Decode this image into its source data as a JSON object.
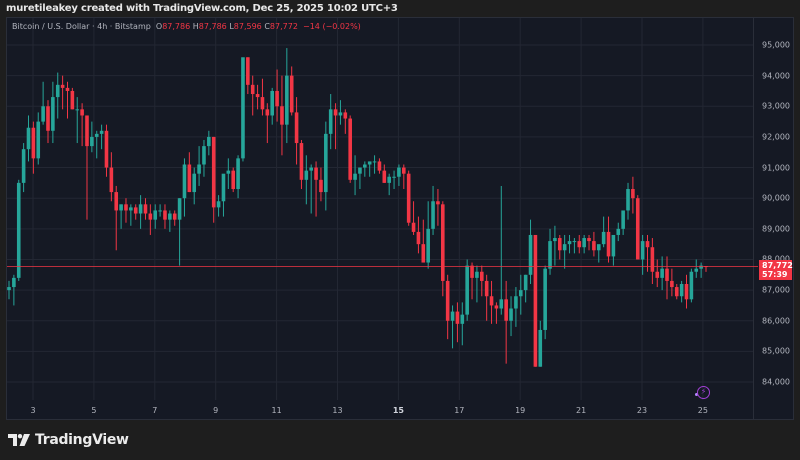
{
  "header": {
    "attribution": "muretileakey created with TradingView.com, Dec 25, 2025 10:02 UTC+3"
  },
  "legend": {
    "symbol": "Bitcoin / U.S. Dollar · 4h · Bitstamp",
    "o_label": "O",
    "o_value": "87,786",
    "h_label": "H",
    "h_value": "87,786",
    "l_label": "L",
    "l_value": "87,596",
    "c_label": "C",
    "c_value": "87,772",
    "change": "−14 (−0.02%)"
  },
  "price_badge": {
    "price": "87,772",
    "countdown": "57:39"
  },
  "footer": {
    "brand": "TradingView"
  },
  "colors": {
    "up": "#26a69a",
    "down": "#f23645",
    "background": "#151924",
    "grid": "#232733",
    "price_line": "#f23645",
    "text": "#b2b5be",
    "bolt": "#a23fd6"
  },
  "chart_data": {
    "type": "candlestick",
    "title": "Bitcoin / U.S. Dollar · 4h · Bitstamp",
    "xlabel": "",
    "ylabel": "",
    "ylim": [
      83500,
      95500
    ],
    "y_ticks": [
      "95,000",
      "94,000",
      "93,000",
      "92,000",
      "91,000",
      "90,000",
      "89,000",
      "88,000",
      "87,000",
      "86,000",
      "85,000",
      "84,000"
    ],
    "x_ticks": [
      "3",
      "5",
      "7",
      "9",
      "11",
      "13",
      "15",
      "17",
      "19",
      "21",
      "23",
      "25"
    ],
    "x_ticks_bold": [
      "15"
    ],
    "last_price": 87772,
    "grid": true,
    "candles": [
      [
        87000,
        87300,
        86700,
        87100
      ],
      [
        87100,
        87500,
        86500,
        87400
      ],
      [
        87400,
        90600,
        87300,
        90500
      ],
      [
        90500,
        91800,
        90200,
        91600
      ],
      [
        91600,
        92700,
        91200,
        92300
      ],
      [
        92300,
        92500,
        90800,
        91300
      ],
      [
        91300,
        92800,
        91100,
        92500
      ],
      [
        92500,
        93800,
        92400,
        93000
      ],
      [
        93000,
        93200,
        91800,
        92200
      ],
      [
        92200,
        93800,
        91800,
        93300
      ],
      [
        93300,
        94100,
        92600,
        93700
      ],
      [
        93700,
        94000,
        92900,
        93600
      ],
      [
        93600,
        93800,
        92600,
        93500
      ],
      [
        93500,
        93600,
        92900,
        92900
      ],
      [
        92900,
        93300,
        91800,
        92900
      ],
      [
        92900,
        93100,
        91700,
        92700
      ],
      [
        92700,
        92700,
        89300,
        91700
      ],
      [
        91700,
        92500,
        91500,
        92000
      ],
      [
        92000,
        92200,
        91300,
        92100
      ],
      [
        92100,
        92400,
        91600,
        92200
      ],
      [
        92200,
        92400,
        90700,
        91000
      ],
      [
        91000,
        91500,
        89900,
        90200
      ],
      [
        90200,
        90400,
        88300,
        89600
      ],
      [
        89600,
        89800,
        89000,
        89800
      ],
      [
        89800,
        90000,
        89200,
        89600
      ],
      [
        89600,
        89800,
        89100,
        89700
      ],
      [
        89700,
        89800,
        89300,
        89500
      ],
      [
        89500,
        90100,
        89000,
        89800
      ],
      [
        89800,
        90000,
        89300,
        89500
      ],
      [
        89500,
        89800,
        88800,
        89300
      ],
      [
        89300,
        89800,
        89000,
        89600
      ],
      [
        89600,
        89800,
        89400,
        89600
      ],
      [
        89600,
        89800,
        89000,
        89300
      ],
      [
        89300,
        89600,
        88900,
        89500
      ],
      [
        89500,
        89600,
        89100,
        89300
      ],
      [
        89300,
        90000,
        87800,
        90000
      ],
      [
        90000,
        91300,
        89400,
        91100
      ],
      [
        91100,
        91500,
        90200,
        90200
      ],
      [
        90200,
        91000,
        89800,
        90800
      ],
      [
        90800,
        91700,
        90400,
        91100
      ],
      [
        91100,
        91900,
        90700,
        91700
      ],
      [
        91700,
        92200,
        91400,
        92000
      ],
      [
        92000,
        92000,
        89200,
        89700
      ],
      [
        89700,
        90100,
        89400,
        89900
      ],
      [
        89900,
        90300,
        89400,
        90800
      ],
      [
        90800,
        91300,
        90300,
        90900
      ],
      [
        90900,
        91000,
        90200,
        90300
      ],
      [
        90300,
        91400,
        90000,
        91300
      ],
      [
        91300,
        93500,
        91200,
        94600
      ],
      [
        94600,
        94600,
        93400,
        93700
      ],
      [
        93700,
        94000,
        92700,
        93400
      ],
      [
        93400,
        93700,
        92900,
        93300
      ],
      [
        93300,
        93900,
        92700,
        92900
      ],
      [
        92900,
        93100,
        91800,
        92700
      ],
      [
        92700,
        93600,
        92400,
        93500
      ],
      [
        93500,
        94200,
        92500,
        93000
      ],
      [
        93000,
        94000,
        91400,
        92400
      ],
      [
        92400,
        94900,
        91800,
        94000
      ],
      [
        94000,
        94300,
        92700,
        92800
      ],
      [
        92800,
        93300,
        91100,
        91800
      ],
      [
        91800,
        91900,
        90300,
        90600
      ],
      [
        90600,
        91400,
        89800,
        90900
      ],
      [
        90900,
        91100,
        89500,
        91000
      ],
      [
        91000,
        91200,
        89400,
        90600
      ],
      [
        90600,
        91000,
        89900,
        90200
      ],
      [
        90200,
        92500,
        89600,
        92100
      ],
      [
        92100,
        93400,
        91600,
        92900
      ],
      [
        92900,
        93100,
        91600,
        92700
      ],
      [
        92700,
        93200,
        92400,
        92800
      ],
      [
        92800,
        92900,
        92100,
        92600
      ],
      [
        92600,
        92700,
        90500,
        90600
      ],
      [
        90600,
        91400,
        90100,
        90800
      ],
      [
        90800,
        91000,
        90300,
        91000
      ],
      [
        91000,
        91200,
        90700,
        91100
      ],
      [
        91100,
        91200,
        90700,
        91200
      ],
      [
        91200,
        91400,
        90800,
        91200
      ],
      [
        91200,
        91300,
        90800,
        90900
      ],
      [
        90900,
        91100,
        90500,
        90500
      ],
      [
        90500,
        90800,
        90100,
        90700
      ],
      [
        90700,
        90900,
        90300,
        90700
      ],
      [
        90700,
        91100,
        90400,
        91000
      ],
      [
        91000,
        91100,
        90300,
        90800
      ],
      [
        90800,
        90900,
        89100,
        89200
      ],
      [
        89200,
        89900,
        88800,
        88900
      ],
      [
        88900,
        89400,
        88200,
        88500
      ],
      [
        88500,
        89300,
        87900,
        87900
      ],
      [
        87900,
        89900,
        87700,
        89000
      ],
      [
        89000,
        90400,
        88800,
        89900
      ],
      [
        89900,
        90300,
        89100,
        89800
      ],
      [
        89800,
        89900,
        86800,
        87300
      ],
      [
        87300,
        87500,
        85400,
        86000
      ],
      [
        86000,
        86500,
        85100,
        86300
      ],
      [
        86300,
        86600,
        85300,
        85900
      ],
      [
        85900,
        86600,
        85200,
        86200
      ],
      [
        86200,
        88000,
        86000,
        87800
      ],
      [
        87800,
        87900,
        86700,
        87400
      ],
      [
        87400,
        87800,
        86600,
        87600
      ],
      [
        87600,
        87800,
        86800,
        87300
      ],
      [
        87300,
        87500,
        86000,
        86800
      ],
      [
        86800,
        87300,
        85900,
        86500
      ],
      [
        86500,
        86600,
        85900,
        86400
      ],
      [
        86400,
        90400,
        86200,
        86700
      ],
      [
        86700,
        87300,
        84600,
        86000
      ],
      [
        86000,
        86800,
        85500,
        86400
      ],
      [
        86400,
        87100,
        85800,
        86800
      ],
      [
        86800,
        87500,
        86200,
        87000
      ],
      [
        87000,
        87500,
        86600,
        87500
      ],
      [
        87500,
        89300,
        87200,
        88800
      ],
      [
        88800,
        88800,
        84500,
        84500
      ],
      [
        84500,
        86000,
        84500,
        85700
      ],
      [
        85700,
        87800,
        85400,
        87700
      ],
      [
        87700,
        89000,
        87500,
        88600
      ],
      [
        88600,
        89100,
        87800,
        88700
      ],
      [
        88700,
        88800,
        88000,
        88300
      ],
      [
        88300,
        88800,
        87700,
        88500
      ],
      [
        88500,
        88800,
        88200,
        88600
      ],
      [
        88600,
        88700,
        88200,
        88600
      ],
      [
        88600,
        88800,
        88200,
        88400
      ],
      [
        88400,
        88800,
        88200,
        88700
      ],
      [
        88700,
        88800,
        88300,
        88600
      ],
      [
        88600,
        88900,
        88100,
        88300
      ],
      [
        88300,
        88400,
        87900,
        88500
      ],
      [
        88500,
        89400,
        88400,
        88900
      ],
      [
        88900,
        89400,
        87900,
        88100
      ],
      [
        88100,
        88600,
        87800,
        88800
      ],
      [
        88800,
        89200,
        88600,
        89000
      ],
      [
        89000,
        89400,
        88800,
        89600
      ],
      [
        89600,
        90500,
        89300,
        90300
      ],
      [
        90300,
        90700,
        89500,
        90000
      ],
      [
        90000,
        90100,
        88000,
        88000
      ],
      [
        88000,
        88800,
        87500,
        88600
      ],
      [
        88600,
        88800,
        87600,
        88400
      ],
      [
        88400,
        88700,
        87200,
        87600
      ],
      [
        87600,
        88000,
        87100,
        87400
      ],
      [
        87400,
        88100,
        87000,
        87700
      ],
      [
        87700,
        88100,
        86700,
        87300
      ],
      [
        87300,
        87700,
        86800,
        87100
      ],
      [
        87100,
        87200,
        86700,
        86800
      ],
      [
        86800,
        87300,
        86600,
        87200
      ],
      [
        87200,
        87500,
        86400,
        86700
      ],
      [
        86700,
        87700,
        86600,
        87600
      ],
      [
        87600,
        88000,
        87400,
        87700
      ],
      [
        87700,
        87900,
        87400,
        87800
      ],
      [
        87786,
        87786,
        87596,
        87772
      ]
    ]
  }
}
